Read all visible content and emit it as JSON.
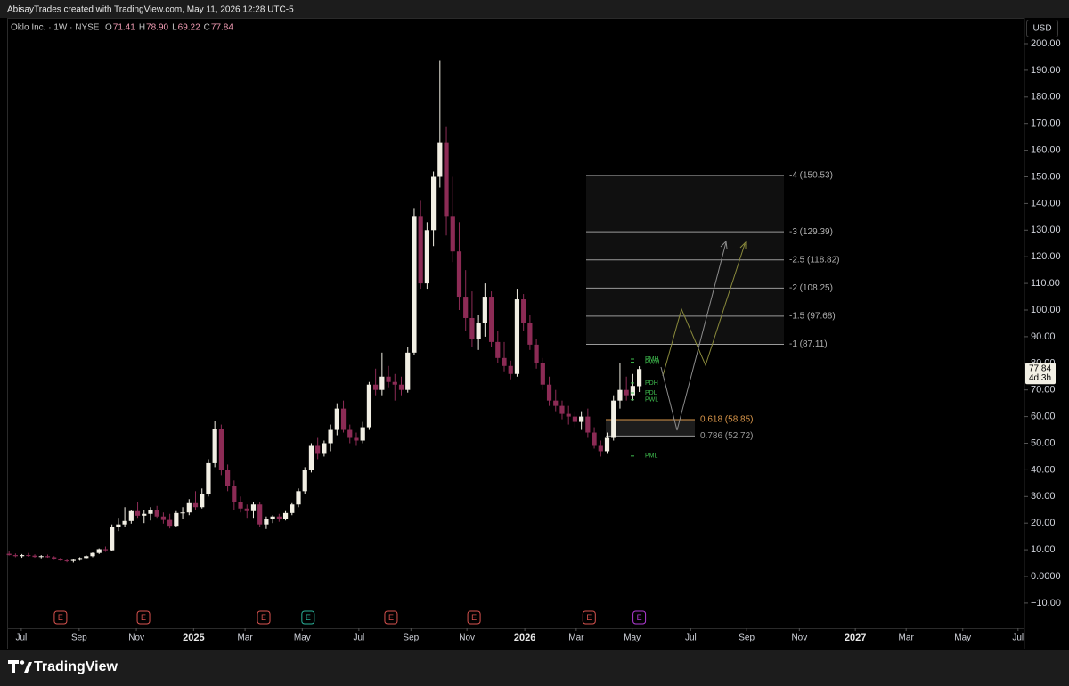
{
  "header": {
    "credit": "AbisayTrades created with TradingView.com, May 11, 2026 12:28 UTC-5",
    "symbol": "Oklo Inc. · 1W · NYSE",
    "ohlc": [
      {
        "key": "O",
        "label": "71.41"
      },
      {
        "key": "H",
        "label": "78.90"
      },
      {
        "key": "L",
        "label": "69.22"
      },
      {
        "key": "C",
        "label": "77.84"
      }
    ],
    "currency": "USD",
    "countdown": "4d 3h"
  },
  "footer": {
    "brand": "TradingView"
  },
  "chart_data": {
    "type": "candlestick",
    "up_color": "#f2efe4",
    "down_color": "#8c2b55",
    "open": [
      8.5,
      8.0,
      7.6,
      8.0,
      7.8,
      7.3,
      7.6,
      7.2,
      6.5,
      6.0,
      5.8,
      6.2,
      6.9,
      7.6,
      8.8,
      10.2,
      9.8,
      18.6,
      19.5,
      20.8,
      24.5,
      22.8,
      23.5,
      24.8,
      22.5,
      21.2,
      19.0,
      23.8,
      24.0,
      27.5,
      26,
      31,
      42.5,
      55.5,
      40,
      34,
      28,
      25.5,
      24.5,
      27,
      19.5,
      21.5,
      22.5,
      21.5,
      23.8,
      27,
      32,
      40,
      49,
      46,
      50,
      55,
      63,
      55,
      52,
      51,
      56,
      72,
      70,
      75,
      73,
      72,
      70,
      84,
      135,
      110,
      130,
      150,
      163,
      135,
      122,
      105,
      97,
      89,
      95,
      105,
      88,
      82,
      79,
      76,
      104,
      95,
      87,
      80,
      72,
      66,
      64,
      61,
      60,
      58,
      60,
      54,
      49,
      47,
      52,
      66,
      70,
      68,
      71.41
    ],
    "high": [
      9.5,
      8.6,
      8.4,
      8.8,
      8.3,
      8.0,
      8.2,
      7.6,
      7.0,
      6.6,
      6.5,
      7.2,
      8.0,
      9.0,
      10.5,
      11.2,
      19.5,
      22,
      26,
      25,
      28,
      25,
      26,
      26.5,
      24,
      23.5,
      24.5,
      26,
      29,
      32,
      33,
      44,
      58.5,
      57,
      42,
      36,
      30,
      27,
      28,
      28,
      22.5,
      23,
      23.5,
      24.5,
      27.5,
      33,
      41,
      50,
      52,
      51,
      57,
      65,
      66,
      57,
      54,
      58,
      73,
      78,
      84,
      79,
      76,
      75,
      86,
      138,
      141,
      133,
      152,
      193.8,
      169,
      150,
      133,
      115,
      107,
      98,
      110,
      107,
      92,
      88,
      81,
      108,
      106,
      98,
      89,
      82,
      75,
      70,
      66,
      64,
      62,
      62,
      63,
      56,
      51,
      54,
      68,
      80,
      75,
      76,
      78.9
    ],
    "low": [
      7.8,
      7.2,
      7.0,
      7.4,
      7.0,
      6.8,
      7.0,
      6.2,
      5.8,
      5.3,
      5.2,
      5.9,
      6.5,
      7.2,
      8.4,
      9.2,
      9.6,
      17,
      18.5,
      19.8,
      22,
      20,
      21,
      22,
      19.8,
      18,
      18.5,
      21.5,
      23,
      25,
      25.5,
      30,
      41,
      38,
      32,
      25,
      24,
      22,
      22,
      18.5,
      17.8,
      20,
      20.5,
      21,
      23,
      26,
      31,
      39,
      44,
      45,
      47,
      53,
      54,
      50,
      49,
      50,
      55,
      68,
      68,
      71,
      66,
      68,
      69,
      83,
      108,
      108,
      124,
      146,
      128,
      118,
      100,
      92,
      86,
      85,
      90,
      86,
      80,
      77,
      74,
      75,
      92,
      85,
      78,
      70,
      64,
      62,
      59,
      57,
      56,
      55,
      52,
      48,
      45,
      46,
      51,
      63,
      66,
      66,
      69.22
    ],
    "close": [
      8.0,
      7.6,
      8.0,
      7.8,
      7.3,
      7.6,
      7.2,
      6.5,
      6.0,
      5.8,
      6.2,
      6.9,
      7.6,
      8.8,
      10.2,
      9.8,
      18.6,
      19.5,
      20.8,
      24.5,
      22.8,
      23.5,
      24.8,
      22.5,
      21.2,
      19.0,
      23.8,
      24.0,
      27.5,
      26,
      31,
      42.5,
      55.5,
      40,
      34,
      28,
      25.5,
      24.5,
      27,
      19.5,
      21.5,
      22.5,
      21.5,
      23.8,
      27,
      32,
      40,
      49,
      46,
      50,
      55,
      63,
      55,
      52,
      51,
      56,
      72,
      70,
      75,
      73,
      72,
      70,
      84,
      135,
      110,
      130,
      150,
      163,
      135,
      122,
      105,
      97,
      89,
      95,
      105,
      88,
      82,
      79,
      76,
      104,
      95,
      87,
      80,
      72,
      66,
      64,
      61,
      60,
      58,
      60,
      54,
      49,
      47,
      52,
      66,
      70,
      68,
      71.5,
      77.84
    ],
    "xlim": [
      -0.3,
      157.9
    ],
    "xticks": [
      {
        "value": 1.9,
        "label": "Jul"
      },
      {
        "value": 10.9,
        "label": "Sep"
      },
      {
        "value": 19.8,
        "label": "Nov"
      },
      {
        "value": 28.7,
        "label": "2025"
      },
      {
        "value": 36.7,
        "label": "Mar"
      },
      {
        "value": 45.6,
        "label": "May"
      },
      {
        "value": 54.4,
        "label": "Jul"
      },
      {
        "value": 62.5,
        "label": "Sep"
      },
      {
        "value": 71.2,
        "label": "Nov"
      },
      {
        "value": 80.2,
        "label": "2026"
      },
      {
        "value": 88.2,
        "label": "Mar"
      },
      {
        "value": 96.9,
        "label": "May"
      },
      {
        "value": 106,
        "label": "Jul"
      },
      {
        "value": 114.7,
        "label": "Sep"
      },
      {
        "value": 122.9,
        "label": "Nov"
      },
      {
        "value": 131.6,
        "label": "2027"
      },
      {
        "value": 139.5,
        "label": "Mar"
      },
      {
        "value": 148.3,
        "label": "May"
      },
      {
        "value": 156.9,
        "label": "Jul"
      }
    ],
    "ylim": [
      -19.4,
      209.7
    ],
    "yticks": [
      {
        "value": 200,
        "label": "200.00"
      },
      {
        "value": 190,
        "label": "190.00"
      },
      {
        "value": 180,
        "label": "180.00"
      },
      {
        "value": 170,
        "label": "170.00"
      },
      {
        "value": 160,
        "label": "160.00"
      },
      {
        "value": 150,
        "label": "150.00"
      },
      {
        "value": 140,
        "label": "140.00"
      },
      {
        "value": 130,
        "label": "130.00"
      },
      {
        "value": 120,
        "label": "120.00"
      },
      {
        "value": 110,
        "label": "110.00"
      },
      {
        "value": 100,
        "label": "100.00"
      },
      {
        "value": 90,
        "label": "90.00"
      },
      {
        "value": 80,
        "label": "80.00"
      },
      {
        "value": 70,
        "label": "70.00"
      },
      {
        "value": 60,
        "label": "60.00"
      },
      {
        "value": 50,
        "label": "50.00"
      },
      {
        "value": 40,
        "label": "40.00"
      },
      {
        "value": 30,
        "label": "30.00"
      },
      {
        "value": 20,
        "label": "20.00"
      },
      {
        "value": 10,
        "label": "10.00"
      },
      {
        "value": 0,
        "label": "0.0000"
      },
      {
        "value": -10,
        "label": "−10.00"
      }
    ],
    "grid": false,
    "fib_levels": [
      {
        "value": 150.53,
        "label": "-4 (150.53)",
        "color": "#b0b0b0"
      },
      {
        "value": 129.39,
        "label": "-3 (129.39)",
        "color": "#b0b0b0"
      },
      {
        "value": 118.82,
        "label": "-2.5 (118.82)",
        "color": "#b0b0b0"
      },
      {
        "value": 108.25,
        "label": "-2 (108.25)",
        "color": "#b0b0b0"
      },
      {
        "value": 97.68,
        "label": "-1.5 (97.68)",
        "color": "#b0b0b0"
      },
      {
        "value": 87.11,
        "label": "-1 (87.11)",
        "color": "#b0b0b0"
      }
    ],
    "retracement_levels": [
      {
        "value": 58.85,
        "label": "0.618 (58.85)",
        "color": "#d9964a"
      },
      {
        "value": 52.72,
        "label": "0.786 (52.72)",
        "color": "#9a9a9a"
      }
    ],
    "key_levels": [
      {
        "value": 81.6,
        "label": "PMH"
      },
      {
        "value": 80.4,
        "label": "PWH"
      },
      {
        "value": 72.6,
        "label": "PDH"
      },
      {
        "value": 68.9,
        "label": "PDL"
      },
      {
        "value": 66.3,
        "label": "PWL"
      },
      {
        "value": 45.2,
        "label": "PML"
      }
    ],
    "key_level_color": "#3fbf4f",
    "earnings": [
      {
        "x": 8,
        "label": "E",
        "color": "#d9534f"
      },
      {
        "x": 20.9,
        "label": "E",
        "color": "#d9534f"
      },
      {
        "x": 39.6,
        "label": "E",
        "color": "#d9534f"
      },
      {
        "x": 46.5,
        "label": "E",
        "color": "#2bb39a"
      },
      {
        "x": 59.4,
        "label": "E",
        "color": "#d9534f"
      },
      {
        "x": 72.3,
        "label": "E",
        "color": "#d9534f"
      },
      {
        "x": 90.2,
        "label": "E",
        "color": "#d9534f"
      },
      {
        "x": 98,
        "label": "E",
        "color": "#b23cd6"
      }
    ]
  }
}
